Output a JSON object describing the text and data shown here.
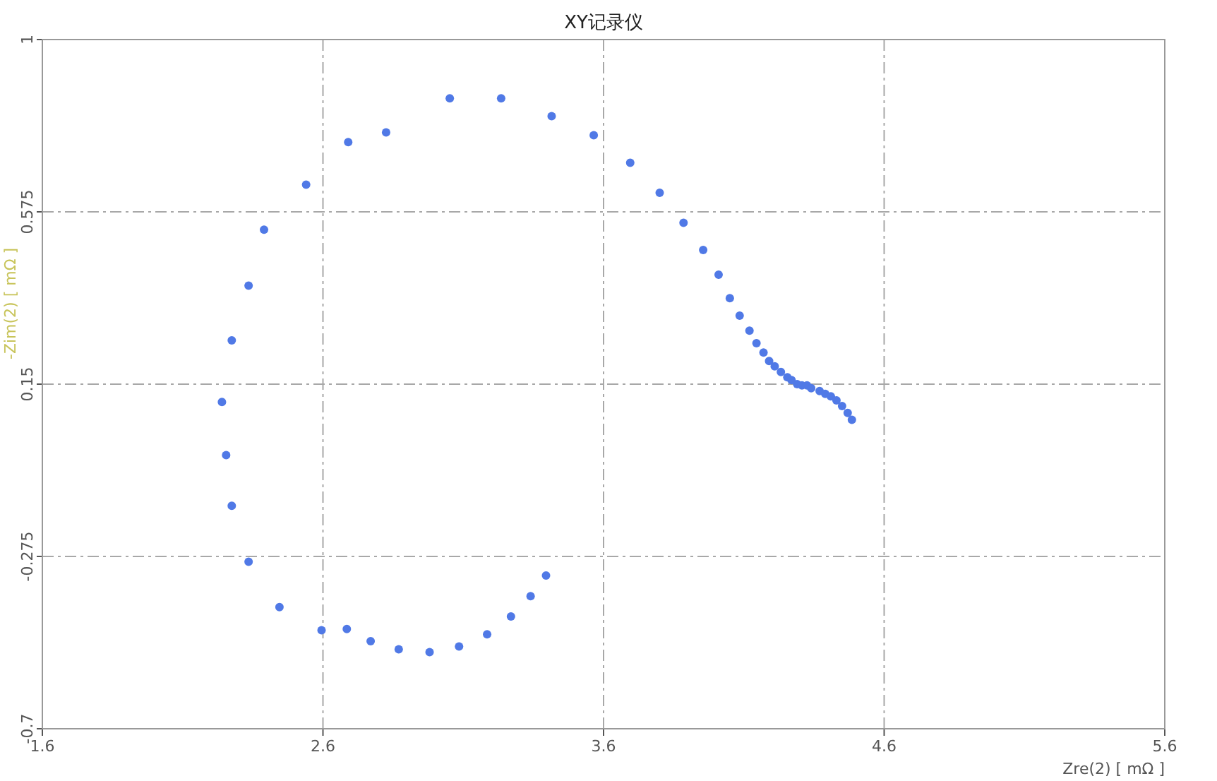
{
  "chart_data": {
    "type": "scatter",
    "title": "XY记录仪",
    "xlabel": "Zre(2) [ mΩ ]",
    "ylabel": "-Zim(2) [ mΩ ]",
    "xlim": [
      1.6,
      5.6
    ],
    "xticks": [
      1.6,
      2.6,
      3.6,
      4.6,
      5.6
    ],
    "ylim": [
      -0.7,
      1
    ],
    "yticks": [
      -0.7,
      -0.275,
      0.15,
      0.575,
      1
    ],
    "grid": true,
    "marker": "circle",
    "series": [
      {
        "color": "#5079e6",
        "x": [
          2.595,
          2.445,
          2.335,
          2.275,
          2.255,
          2.24,
          2.275,
          2.335,
          2.39,
          2.54,
          2.69,
          2.825,
          3.052,
          3.235,
          3.415,
          3.565,
          3.695,
          3.8,
          3.885,
          3.955,
          4.01,
          4.05,
          4.085,
          4.12,
          4.145,
          4.17,
          4.19,
          4.21,
          4.232,
          4.255,
          4.27,
          4.29,
          4.307,
          4.325,
          4.34,
          4.37,
          4.39,
          4.41,
          4.43,
          4.45,
          4.47,
          4.485,
          2.685,
          2.77,
          2.87,
          2.98,
          3.085,
          3.185,
          3.27,
          3.34,
          3.395
        ],
        "values": [
          -0.457,
          -0.4,
          -0.288,
          -0.15,
          -0.025,
          0.106,
          0.258,
          0.393,
          0.531,
          0.642,
          0.747,
          0.771,
          0.855,
          0.855,
          0.811,
          0.764,
          0.696,
          0.622,
          0.548,
          0.481,
          0.42,
          0.362,
          0.319,
          0.282,
          0.251,
          0.228,
          0.207,
          0.194,
          0.18,
          0.167,
          0.16,
          0.15,
          0.147,
          0.147,
          0.14,
          0.133,
          0.126,
          0.12,
          0.11,
          0.096,
          0.079,
          0.062,
          -0.454,
          -0.484,
          -0.504,
          -0.511,
          -0.497,
          -0.467,
          -0.423,
          -0.373,
          -0.322
        ]
      }
    ]
  }
}
